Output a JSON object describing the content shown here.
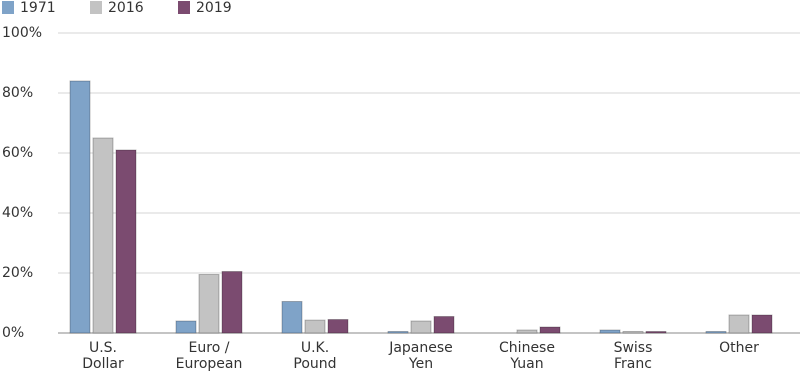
{
  "chart_data": {
    "type": "bar",
    "categories": [
      "U.S.\nDollar",
      "Euro /\nEuropean",
      "U.K.\nPound",
      "Japanese\nYen",
      "Chinese\nYuan",
      "Swiss\nFranc",
      "Other"
    ],
    "series": [
      {
        "name": "1971",
        "color": "#7fa3c8",
        "values": [
          84,
          4,
          10.5,
          0.5,
          0,
          1,
          0.5
        ]
      },
      {
        "name": "2016",
        "color": "#c3c3c3",
        "values": [
          65,
          19.5,
          4.3,
          4,
          1,
          0.5,
          6
        ]
      },
      {
        "name": "2019",
        "color": "#7b4b70",
        "values": [
          61,
          20.5,
          4.5,
          5.5,
          2,
          0.5,
          6
        ]
      }
    ],
    "ylim": [
      0,
      100
    ],
    "yticks": [
      {
        "value": 0,
        "label": "0%"
      },
      {
        "value": 20,
        "label": "20%"
      },
      {
        "value": 40,
        "label": "40%"
      },
      {
        "value": 60,
        "label": "60%"
      },
      {
        "value": 80,
        "label": "80%"
      },
      {
        "value": 100,
        "label": "100%"
      }
    ],
    "grid": true
  }
}
